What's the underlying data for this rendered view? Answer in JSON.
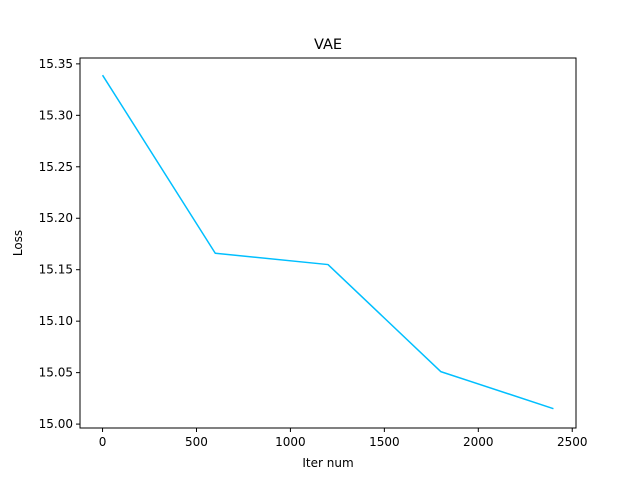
{
  "chart_data": {
    "type": "line",
    "title": "VAE",
    "xlabel": "Iter num",
    "ylabel": "Loss",
    "xlim": [
      -120,
      2520
    ],
    "ylim": [
      14.9962,
      15.3557
    ],
    "xticks": [
      0,
      500,
      1000,
      1500,
      2000,
      2500
    ],
    "yticks": [
      15.0,
      15.05,
      15.1,
      15.15,
      15.2,
      15.25,
      15.3,
      15.35
    ],
    "grid": false,
    "series": [
      {
        "color": "#00bfff",
        "x": [
          0,
          600,
          1200,
          1800,
          2400
        ],
        "y": [
          15.339,
          15.166,
          15.155,
          15.051,
          15.015
        ]
      }
    ]
  }
}
